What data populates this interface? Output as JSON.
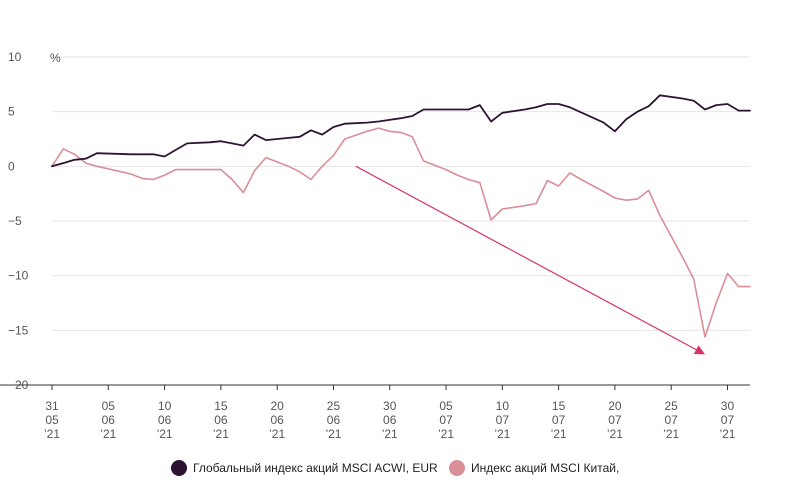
{
  "chart_data": {
    "type": "line",
    "title": "",
    "xlabel": "",
    "ylabel": "",
    "y_unit_label": "%",
    "ylim": [
      -20,
      10
    ],
    "yticks": [
      10,
      5,
      0,
      -5,
      -10,
      -15,
      -20
    ],
    "ytick_labels": [
      "10",
      "5",
      "0",
      "−5",
      "−10",
      "−15",
      "−20"
    ],
    "xlim": [
      "2021-05-31",
      "2021-08-01"
    ],
    "xticks": [
      {
        "date": "2021-05-31",
        "day": "31",
        "month": "05",
        "year": "’21"
      },
      {
        "date": "2021-06-05",
        "day": "05",
        "month": "06",
        "year": "’21"
      },
      {
        "date": "2021-06-10",
        "day": "10",
        "month": "06",
        "year": "’21"
      },
      {
        "date": "2021-06-15",
        "day": "15",
        "month": "06",
        "year": "’21"
      },
      {
        "date": "2021-06-20",
        "day": "20",
        "month": "06",
        "year": "’21"
      },
      {
        "date": "2021-06-25",
        "day": "25",
        "month": "06",
        "year": "’21"
      },
      {
        "date": "2021-06-30",
        "day": "30",
        "month": "06",
        "year": "’21"
      },
      {
        "date": "2021-07-05",
        "day": "05",
        "month": "07",
        "year": "’21"
      },
      {
        "date": "2021-07-10",
        "day": "10",
        "month": "07",
        "year": "’21"
      },
      {
        "date": "2021-07-15",
        "day": "15",
        "month": "07",
        "year": "’21"
      },
      {
        "date": "2021-07-20",
        "day": "20",
        "month": "07",
        "year": "’21"
      },
      {
        "date": "2021-07-25",
        "day": "25",
        "month": "07",
        "year": "’21"
      },
      {
        "date": "2021-07-30",
        "day": "30",
        "month": "07",
        "year": "’21"
      }
    ],
    "grid": true,
    "legend_position": "bottom-center",
    "series": [
      {
        "name": "Глобальный индекс акций MSCI ACWI, EUR",
        "color": "#2e1433",
        "points": [
          [
            "2021-05-31",
            0
          ],
          [
            "2021-06-01",
            0.3
          ],
          [
            "2021-06-02",
            0.6
          ],
          [
            "2021-06-03",
            0.7
          ],
          [
            "2021-06-04",
            1.2
          ],
          [
            "2021-06-07",
            1.1
          ],
          [
            "2021-06-08",
            1.1
          ],
          [
            "2021-06-09",
            1.1
          ],
          [
            "2021-06-10",
            0.9
          ],
          [
            "2021-06-11",
            1.5
          ],
          [
            "2021-06-12",
            2.1
          ],
          [
            "2021-06-14",
            2.2
          ],
          [
            "2021-06-15",
            2.3
          ],
          [
            "2021-06-16",
            2.1
          ],
          [
            "2021-06-17",
            1.9
          ],
          [
            "2021-06-18",
            2.9
          ],
          [
            "2021-06-19",
            2.4
          ],
          [
            "2021-06-21",
            2.6
          ],
          [
            "2021-06-22",
            2.7
          ],
          [
            "2021-06-23",
            3.3
          ],
          [
            "2021-06-24",
            2.9
          ],
          [
            "2021-06-25",
            3.6
          ],
          [
            "2021-06-26",
            3.9
          ],
          [
            "2021-06-28",
            4.0
          ],
          [
            "2021-06-29",
            4.1
          ],
          [
            "2021-07-01",
            4.4
          ],
          [
            "2021-07-02",
            4.6
          ],
          [
            "2021-07-03",
            5.2
          ],
          [
            "2021-07-05",
            5.2
          ],
          [
            "2021-07-06",
            5.2
          ],
          [
            "2021-07-07",
            5.2
          ],
          [
            "2021-07-08",
            5.6
          ],
          [
            "2021-07-09",
            4.1
          ],
          [
            "2021-07-10",
            4.9
          ],
          [
            "2021-07-12",
            5.2
          ],
          [
            "2021-07-13",
            5.4
          ],
          [
            "2021-07-14",
            5.7
          ],
          [
            "2021-07-15",
            5.7
          ],
          [
            "2021-07-16",
            5.4
          ],
          [
            "2021-07-19",
            4.0
          ],
          [
            "2021-07-20",
            3.2
          ],
          [
            "2021-07-21",
            4.3
          ],
          [
            "2021-07-22",
            5.0
          ],
          [
            "2021-07-23",
            5.5
          ],
          [
            "2021-07-24",
            6.5
          ],
          [
            "2021-07-26",
            6.2
          ],
          [
            "2021-07-27",
            6.0
          ],
          [
            "2021-07-28",
            5.2
          ],
          [
            "2021-07-29",
            5.6
          ],
          [
            "2021-07-30",
            5.7
          ],
          [
            "2021-07-31",
            5.1
          ],
          [
            "2021-08-01",
            5.1
          ]
        ]
      },
      {
        "name": "Индекс акций MSCI Китай,",
        "color": "#d98e98",
        "points": [
          [
            "2021-05-31",
            0
          ],
          [
            "2021-06-01",
            1.6
          ],
          [
            "2021-06-02",
            1.1
          ],
          [
            "2021-06-03",
            0.3
          ],
          [
            "2021-06-04",
            0.0
          ],
          [
            "2021-06-07",
            -0.7
          ],
          [
            "2021-06-08",
            -1.1
          ],
          [
            "2021-06-09",
            -1.2
          ],
          [
            "2021-06-10",
            -0.8
          ],
          [
            "2021-06-11",
            -0.3
          ],
          [
            "2021-06-12",
            -0.3
          ],
          [
            "2021-06-14",
            -0.3
          ],
          [
            "2021-06-15",
            -0.3
          ],
          [
            "2021-06-16",
            -1.2
          ],
          [
            "2021-06-17",
            -2.4
          ],
          [
            "2021-06-18",
            -0.4
          ],
          [
            "2021-06-19",
            0.8
          ],
          [
            "2021-06-21",
            0.0
          ],
          [
            "2021-06-22",
            -0.5
          ],
          [
            "2021-06-23",
            -1.2
          ],
          [
            "2021-06-24",
            0.0
          ],
          [
            "2021-06-25",
            1.0
          ],
          [
            "2021-06-26",
            2.5
          ],
          [
            "2021-06-28",
            3.2
          ],
          [
            "2021-06-29",
            3.5
          ],
          [
            "2021-06-30",
            3.2
          ],
          [
            "2021-07-01",
            3.1
          ],
          [
            "2021-07-02",
            2.7
          ],
          [
            "2021-07-03",
            0.5
          ],
          [
            "2021-07-05",
            -0.3
          ],
          [
            "2021-07-06",
            -0.8
          ],
          [
            "2021-07-07",
            -1.2
          ],
          [
            "2021-07-08",
            -1.5
          ],
          [
            "2021-07-09",
            -4.9
          ],
          [
            "2021-07-10",
            -3.9
          ],
          [
            "2021-07-12",
            -3.6
          ],
          [
            "2021-07-13",
            -3.4
          ],
          [
            "2021-07-14",
            -1.3
          ],
          [
            "2021-07-15",
            -1.8
          ],
          [
            "2021-07-16",
            -0.6
          ],
          [
            "2021-07-17",
            -1.2
          ],
          [
            "2021-07-19",
            -2.3
          ],
          [
            "2021-07-20",
            -2.9
          ],
          [
            "2021-07-21",
            -3.1
          ],
          [
            "2021-07-22",
            -3.0
          ],
          [
            "2021-07-23",
            -2.2
          ],
          [
            "2021-07-24",
            -4.5
          ],
          [
            "2021-07-26",
            -8.3
          ],
          [
            "2021-07-27",
            -10.3
          ],
          [
            "2021-07-28",
            -15.6
          ],
          [
            "2021-07-29",
            -12.5
          ],
          [
            "2021-07-30",
            -9.8
          ],
          [
            "2021-07-31",
            -11.0
          ],
          [
            "2021-08-01",
            -11.0
          ]
        ]
      }
    ],
    "annotations": [
      {
        "type": "arrow",
        "color": "#d6336c",
        "from": [
          "2021-06-27",
          0
        ],
        "to": [
          "2021-07-28",
          -17.2
        ]
      }
    ]
  }
}
